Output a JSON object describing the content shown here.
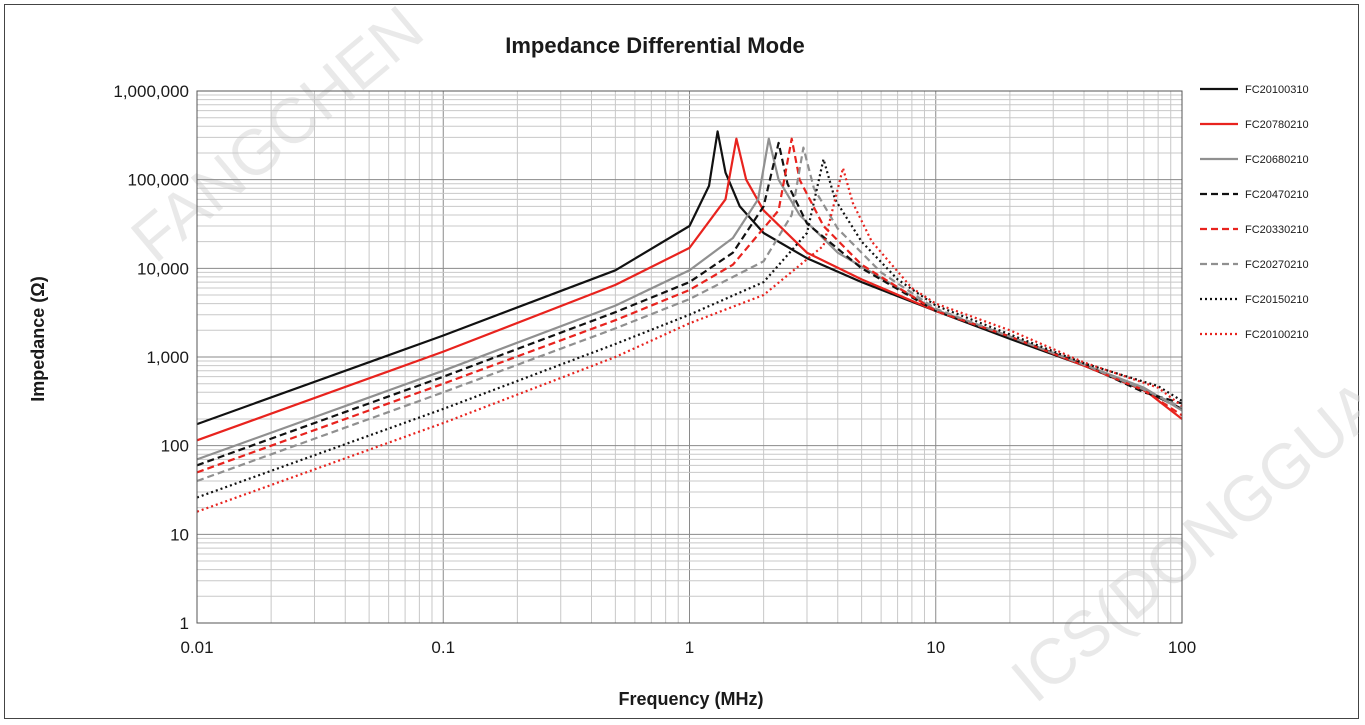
{
  "watermark": {
    "left": "FANGCHEN",
    "right": "ICS(DONGGUA"
  },
  "chart_data": {
    "type": "line",
    "title": "Impedance Differential Mode",
    "xlabel": "Frequency (MHz)",
    "ylabel": "Impedance (Ω)",
    "xscale": "log",
    "yscale": "log",
    "xlim": [
      0.01,
      100
    ],
    "ylim": [
      1,
      1000000
    ],
    "x_ticks": [
      0.01,
      0.1,
      1,
      10,
      100
    ],
    "x_tick_labels": [
      "0.01",
      "0.1",
      "1",
      "10",
      "100"
    ],
    "y_ticks": [
      1,
      10,
      100,
      1000,
      10000,
      100000,
      1000000
    ],
    "y_tick_labels": [
      "1",
      "10",
      "100",
      "1,000",
      "10,000",
      "100,000",
      "1,000,000"
    ],
    "grid": true,
    "legend_position": "right",
    "series": [
      {
        "name": "FC20100310",
        "color": "#111111",
        "dash": "solid",
        "x": [
          0.01,
          0.1,
          0.5,
          1.0,
          1.2,
          1.3,
          1.4,
          1.6,
          2.0,
          3.0,
          5.0,
          10,
          20,
          40,
          70,
          100
        ],
        "y": [
          175,
          1750,
          9500,
          30000,
          85000,
          350000,
          120000,
          50000,
          25000,
          13000,
          7000,
          3300,
          1600,
          800,
          420,
          260
        ]
      },
      {
        "name": "FC20780210",
        "color": "#e8231e",
        "dash": "solid",
        "x": [
          0.01,
          0.1,
          0.5,
          1.0,
          1.4,
          1.55,
          1.7,
          2.0,
          3.0,
          5.0,
          10,
          20,
          40,
          70,
          100
        ],
        "y": [
          115,
          1150,
          6500,
          17000,
          60000,
          290000,
          100000,
          45000,
          15000,
          7500,
          3300,
          1700,
          800,
          430,
          200
        ]
      },
      {
        "name": "FC20680210",
        "color": "#909090",
        "dash": "solid",
        "x": [
          0.01,
          0.1,
          0.5,
          1.0,
          1.5,
          1.9,
          2.1,
          2.3,
          2.8,
          4.0,
          10,
          20,
          40,
          70,
          100
        ],
        "y": [
          70,
          700,
          3800,
          9500,
          22000,
          60000,
          290000,
          100000,
          40000,
          15000,
          3400,
          1700,
          820,
          450,
          250
        ]
      },
      {
        "name": "FC20470210",
        "color": "#111111",
        "dash": "dashed",
        "x": [
          0.01,
          0.1,
          0.5,
          1.0,
          1.5,
          2.0,
          2.3,
          2.5,
          3.0,
          5.0,
          10,
          20,
          40,
          70,
          100
        ],
        "y": [
          60,
          600,
          3200,
          7000,
          15000,
          50000,
          260000,
          90000,
          32000,
          10000,
          3300,
          1700,
          820,
          400,
          300
        ]
      },
      {
        "name": "FC20330210",
        "color": "#e8231e",
        "dash": "dashed",
        "x": [
          0.01,
          0.1,
          0.5,
          1.0,
          1.5,
          2.3,
          2.6,
          2.8,
          3.5,
          5.0,
          10,
          20,
          40,
          70,
          100
        ],
        "y": [
          50,
          500,
          2600,
          5700,
          11000,
          45000,
          290000,
          100000,
          30000,
          11000,
          3300,
          1700,
          800,
          420,
          220
        ]
      },
      {
        "name": "FC20270210",
        "color": "#909090",
        "dash": "dashed",
        "x": [
          0.01,
          0.1,
          0.5,
          1.0,
          2.0,
          2.6,
          2.9,
          3.2,
          4.0,
          6.0,
          10,
          20,
          40,
          70,
          100
        ],
        "y": [
          40,
          400,
          2100,
          4500,
          12000,
          40000,
          230000,
          80000,
          28000,
          9000,
          3500,
          1700,
          820,
          430,
          270
        ]
      },
      {
        "name": "FC20150210",
        "color": "#111111",
        "dash": "dotted",
        "x": [
          0.01,
          0.1,
          0.5,
          1.0,
          2.0,
          3.0,
          3.5,
          3.9,
          5.0,
          7.0,
          10,
          20,
          40,
          80,
          100
        ],
        "y": [
          26,
          260,
          1400,
          3000,
          7000,
          25000,
          170000,
          60000,
          20000,
          7500,
          3800,
          1800,
          850,
          470,
          320
        ]
      },
      {
        "name": "FC20100210",
        "color": "#e8231e",
        "dash": "dotted",
        "x": [
          0.01,
          0.1,
          0.5,
          1.0,
          2.0,
          3.5,
          4.2,
          4.6,
          5.5,
          8.0,
          10,
          20,
          40,
          80,
          100
        ],
        "y": [
          18,
          180,
          1000,
          2400,
          5000,
          18000,
          135000,
          55000,
          20000,
          6000,
          4000,
          2000,
          870,
          450,
          280
        ]
      }
    ]
  }
}
